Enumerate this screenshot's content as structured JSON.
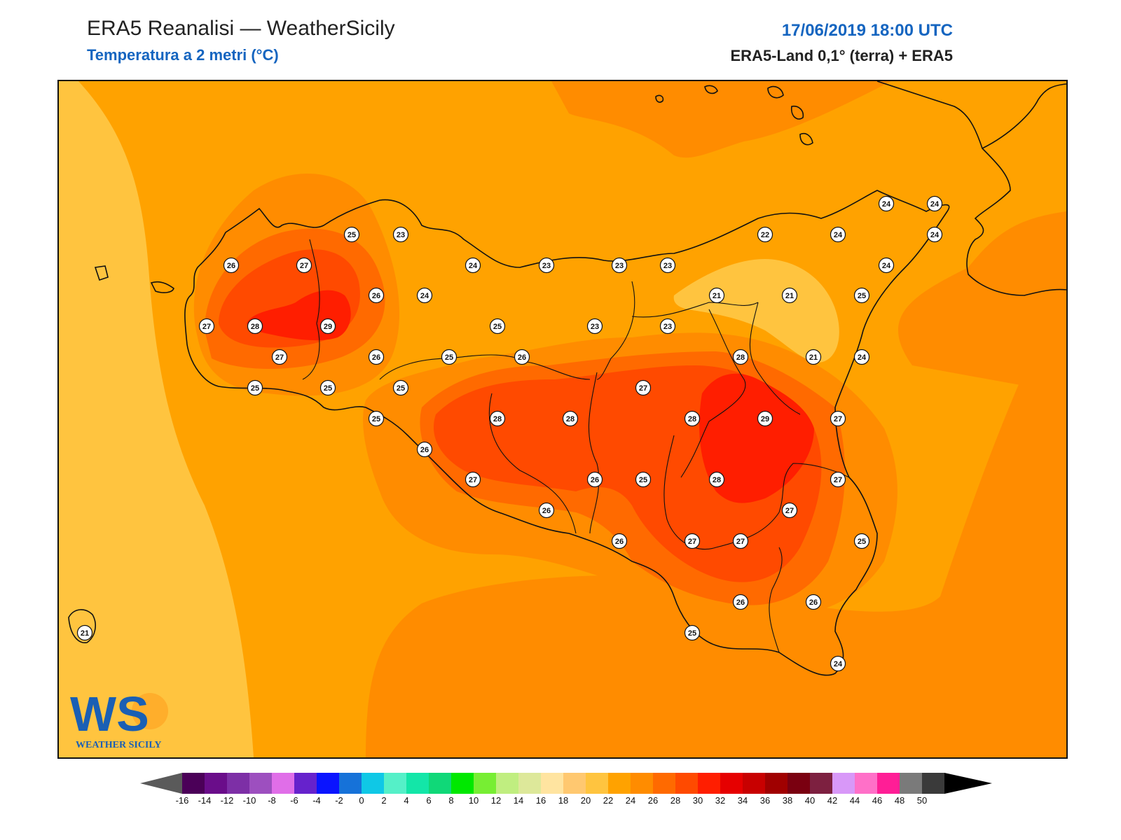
{
  "header": {
    "title": "ERA5 Reanalisi — WeatherSicily",
    "subtitle": "Temperatura a 2 metri (°C)",
    "datetime": "17/06/2019 18:00 UTC",
    "source": "ERA5-Land 0,1° (terra) + ERA5"
  },
  "logo": {
    "text": "WS",
    "caption": "WEATHER SICILY"
  },
  "colors": {
    "t20": "#ffc43f",
    "t22": "#ffa200",
    "t24": "#ff8c00",
    "t26": "#ff6a00",
    "t28": "#ff4a00",
    "t29": "#ff1e00",
    "accent": "#1565c0"
  },
  "legend": {
    "ticks": [
      "-16",
      "-14",
      "-12",
      "-10",
      "-8",
      "-6",
      "-4",
      "-2",
      "0",
      "2",
      "4",
      "6",
      "8",
      "10",
      "12",
      "14",
      "16",
      "18",
      "20",
      "22",
      "24",
      "26",
      "28",
      "30",
      "32",
      "34",
      "36",
      "38",
      "40",
      "42",
      "44",
      "46",
      "48",
      "50"
    ],
    "colors": [
      "#4b0058",
      "#6a0d8a",
      "#7d2fa6",
      "#9d4fbf",
      "#e06ee8",
      "#6622cc",
      "#0a14ff",
      "#1672d9",
      "#0fc8e6",
      "#55f0c8",
      "#13e6a8",
      "#10d878",
      "#00e800",
      "#77ee33",
      "#c0ee80",
      "#dde89a",
      "#ffe4a0",
      "#ffc870",
      "#ffc43f",
      "#ffa200",
      "#ff8c00",
      "#ff6a00",
      "#ff4a00",
      "#ff1e00",
      "#e60000",
      "#c80000",
      "#a00000",
      "#7a0010",
      "#7d2040",
      "#d898f8",
      "#ff70c8",
      "#ff1e96",
      "#7a7a7a",
      "#3a3a3a"
    ]
  },
  "stations": [
    {
      "value": "25",
      "id": "s1"
    },
    {
      "value": "23",
      "id": "s2"
    },
    {
      "value": "26",
      "id": "s3"
    },
    {
      "value": "27",
      "id": "s4"
    },
    {
      "value": "24",
      "id": "s5"
    },
    {
      "value": "23",
      "id": "s6"
    },
    {
      "value": "23",
      "id": "s7"
    },
    {
      "value": "23",
      "id": "s8"
    },
    {
      "value": "22",
      "id": "s9"
    },
    {
      "value": "24",
      "id": "s10"
    },
    {
      "value": "24",
      "id": "s11"
    },
    {
      "value": "24",
      "id": "s12"
    },
    {
      "value": "24",
      "id": "s13"
    },
    {
      "value": "24",
      "id": "s14"
    },
    {
      "value": "26",
      "id": "s15"
    },
    {
      "value": "24",
      "id": "s16"
    },
    {
      "value": "21",
      "id": "s17"
    },
    {
      "value": "21",
      "id": "s18"
    },
    {
      "value": "25",
      "id": "s19"
    },
    {
      "value": "27",
      "id": "s20"
    },
    {
      "value": "28",
      "id": "s21"
    },
    {
      "value": "29",
      "id": "s22"
    },
    {
      "value": "25",
      "id": "s23"
    },
    {
      "value": "23",
      "id": "s24"
    },
    {
      "value": "23",
      "id": "s25"
    },
    {
      "value": "27",
      "id": "s26"
    },
    {
      "value": "26",
      "id": "s27"
    },
    {
      "value": "25",
      "id": "s28"
    },
    {
      "value": "26",
      "id": "s29"
    },
    {
      "value": "28",
      "id": "s30"
    },
    {
      "value": "21",
      "id": "s31"
    },
    {
      "value": "24",
      "id": "s32"
    },
    {
      "value": "25",
      "id": "s33"
    },
    {
      "value": "25",
      "id": "s34"
    },
    {
      "value": "25",
      "id": "s35"
    },
    {
      "value": "27",
      "id": "s36"
    },
    {
      "value": "25",
      "id": "s37"
    },
    {
      "value": "28",
      "id": "s38"
    },
    {
      "value": "28",
      "id": "s39"
    },
    {
      "value": "28",
      "id": "s40"
    },
    {
      "value": "29",
      "id": "s41"
    },
    {
      "value": "27",
      "id": "s42"
    },
    {
      "value": "26",
      "id": "s43"
    },
    {
      "value": "27",
      "id": "s44"
    },
    {
      "value": "26",
      "id": "s45"
    },
    {
      "value": "25",
      "id": "s46"
    },
    {
      "value": "28",
      "id": "s47"
    },
    {
      "value": "27",
      "id": "s48"
    },
    {
      "value": "26",
      "id": "s49"
    },
    {
      "value": "27",
      "id": "s50"
    },
    {
      "value": "27",
      "id": "s51"
    },
    {
      "value": "26",
      "id": "s52"
    },
    {
      "value": "27",
      "id": "s53"
    },
    {
      "value": "25",
      "id": "s54"
    },
    {
      "value": "26",
      "id": "s55"
    },
    {
      "value": "26",
      "id": "s56"
    },
    {
      "value": "25",
      "id": "s57"
    },
    {
      "value": "24",
      "id": "s58"
    },
    {
      "value": "21",
      "id": "s59"
    }
  ]
}
